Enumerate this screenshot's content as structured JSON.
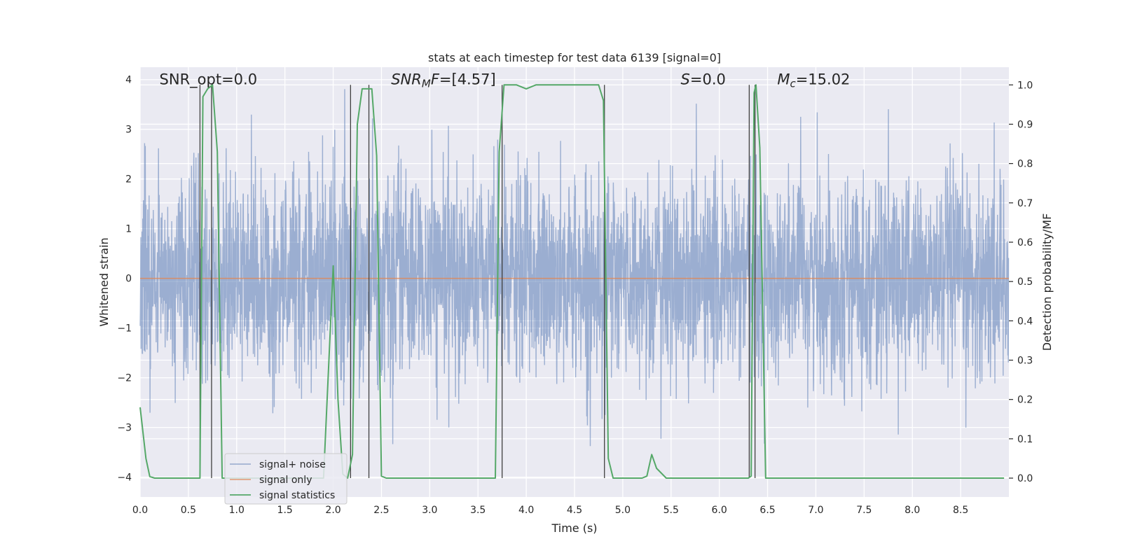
{
  "chart_data": {
    "type": "line",
    "title": "stats at each timestep for test data 6139 [signal=0]",
    "xlabel": "Time (s)",
    "ylabel": "Whitened strain",
    "ylabel_right": "Detection probability/MF",
    "xlim": [
      0,
      9.0
    ],
    "ylim": [
      -4.4,
      4.25
    ],
    "ylim_right": [
      -0.048,
      1.045
    ],
    "x_ticks": [
      0.0,
      0.5,
      1.0,
      1.5,
      2.0,
      2.5,
      3.0,
      3.5,
      4.0,
      4.5,
      5.0,
      5.5,
      6.0,
      6.5,
      7.0,
      7.5,
      8.0,
      8.5
    ],
    "x_tick_labels": [
      "0.0",
      "0.5",
      "1.0",
      "1.5",
      "2.0",
      "2.5",
      "3.0",
      "3.5",
      "4.0",
      "4.5",
      "5.0",
      "5.5",
      "6.0",
      "6.5",
      "7.0",
      "7.5",
      "8.0",
      "8.5"
    ],
    "y_ticks": [
      -4,
      -3,
      -2,
      -1,
      0,
      1,
      2,
      3,
      4
    ],
    "y_tick_labels": [
      "−4",
      "−3",
      "−2",
      "−1",
      "0",
      "1",
      "2",
      "3",
      "4"
    ],
    "y2_ticks": [
      0.0,
      0.1,
      0.2,
      0.3,
      0.4,
      0.5,
      0.6,
      0.7,
      0.8,
      0.9,
      1.0
    ],
    "y2_tick_labels": [
      "0.0",
      "0.1",
      "0.2",
      "0.3",
      "0.4",
      "0.5",
      "0.6",
      "0.7",
      "0.8",
      "0.9",
      "1.0"
    ],
    "grid": true,
    "annotations": [
      {
        "text": "SNR_opt=0.0",
        "x": 0.2,
        "y": 4.0
      },
      {
        "text": "SNR",
        "sub": "M",
        "suffix": "F=[4.57]",
        "italic": true,
        "x": 2.6,
        "y": 4.0
      },
      {
        "text": "S",
        "suffix": "=0.0",
        "italic": true,
        "x": 5.6,
        "y": 4.0
      },
      {
        "text": "M",
        "sub": "c",
        "suffix": "=15.02",
        "italic": true,
        "x": 6.6,
        "y": 4.0
      }
    ],
    "legend": {
      "position": "lower-left",
      "entries": [
        "signal+ noise",
        "signal only",
        "signal statistics"
      ]
    },
    "series": [
      {
        "name": "signal+ noise",
        "axis": "left",
        "color": "#4c72b0",
        "description": "whitened noise, amplitude ~±2 with excursions to ±4",
        "amplitude": 1.0,
        "sample_rate": 409.6
      },
      {
        "name": "signal only",
        "axis": "left",
        "color": "#dd8452",
        "x": [
          0.0,
          9.0
        ],
        "y": [
          0.0,
          0.0
        ]
      },
      {
        "name": "signal statistics",
        "axis": "right",
        "color": "#55a868",
        "x": [
          0.0,
          0.06,
          0.1,
          0.15,
          0.3,
          0.5,
          0.62,
          0.65,
          0.7,
          0.75,
          0.8,
          0.85,
          0.9,
          1.0,
          1.5,
          1.9,
          2.0,
          2.05,
          2.1,
          2.15,
          2.2,
          2.25,
          2.3,
          2.35,
          2.4,
          2.45,
          2.5,
          2.55,
          3.0,
          3.5,
          3.68,
          3.72,
          3.77,
          3.8,
          3.9,
          4.0,
          4.1,
          4.5,
          4.75,
          4.8,
          4.85,
          4.9,
          5.0,
          5.2,
          5.25,
          5.3,
          5.35,
          5.45,
          5.5,
          6.0,
          6.3,
          6.33,
          6.36,
          6.38,
          6.42,
          6.48,
          6.5,
          7.0,
          8.0,
          8.95
        ],
        "y": [
          0.18,
          0.05,
          0.004,
          0.0,
          0.0,
          0.0,
          0.0,
          0.97,
          0.99,
          1.0,
          0.83,
          0.0,
          0.0,
          0.0,
          0.0,
          0.0,
          0.54,
          0.2,
          0.01,
          0.0,
          0.06,
          0.9,
          0.99,
          0.99,
          0.99,
          0.82,
          0.005,
          0.0,
          0.0,
          0.0,
          0.0,
          0.83,
          1.0,
          1.0,
          1.0,
          0.99,
          1.0,
          1.0,
          1.0,
          0.96,
          0.05,
          0.0,
          0.0,
          0.0,
          0.005,
          0.06,
          0.025,
          0.0,
          0.0,
          0.0,
          0.0,
          0.005,
          0.98,
          1.0,
          0.84,
          0.0,
          0.0,
          0.0,
          0.0,
          0.0
        ]
      }
    ],
    "vlines": [
      0.62,
      0.74,
      2.18,
      2.37,
      3.75,
      4.81,
      6.31,
      6.37
    ]
  }
}
